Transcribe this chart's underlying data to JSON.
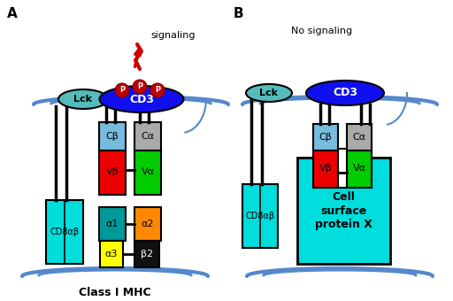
{
  "bg_color": "#ffffff",
  "panel_A_label": "A",
  "panel_B_label": "B",
  "signaling_text": "signaling",
  "no_signaling_text": "No signaling",
  "class_mhc_text": "Class I MHC",
  "cd3_text": "CD3",
  "lck_text": "Lck",
  "cb_text": "Cβ",
  "ca_text": "Cα",
  "vb_text": "Vβ",
  "va_text": "Vα",
  "a1_text": "α1",
  "a2_text": "α2",
  "a3_text": "α3",
  "b2_text": "β2",
  "cd8ab_text": "CD8αβ",
  "cell_surface_text": "Cell\nsurface\nprotein X",
  "colors": {
    "cd3_blue": "#1010ee",
    "lck_cyan": "#55bbbb",
    "cb_lightblue": "#77bbdd",
    "ca_gray": "#aaaaaa",
    "vb_red": "#ee0000",
    "va_green": "#00cc00",
    "a1_teal": "#009999",
    "a2_orange": "#ff8800",
    "a3_yellow": "#ffff00",
    "b2_black": "#111111",
    "cd8_cyan": "#00dddd",
    "membrane_blue": "#5588cc",
    "p_red": "#bb0000",
    "arrow_red": "#cc0000",
    "line_black": "#000000",
    "white": "#ffffff"
  }
}
